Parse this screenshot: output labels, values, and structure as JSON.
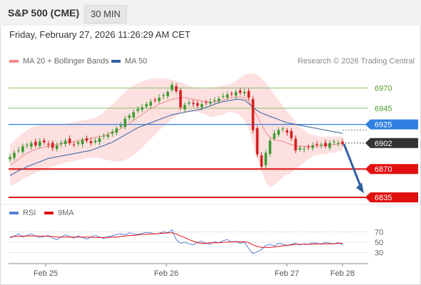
{
  "header": {
    "title": "S&P 500 (CME)",
    "interval": "30 MIN"
  },
  "datetime": "Friday, February 27, 2026 11:26:29 AM CET",
  "legend": {
    "items": [
      {
        "label": "MA 20 + Bollinger Bands",
        "color": "#f08a8a"
      },
      {
        "label": "MA 50",
        "color": "#2f5f9e"
      }
    ],
    "credit": "Research © 2026 Trading Central"
  },
  "rsi_legend": {
    "items": [
      {
        "label": "RSI",
        "color": "#5b7fd6"
      },
      {
        "label": "9MA",
        "color": "#e01010"
      }
    ]
  },
  "chart_data": [
    {
      "type": "candlestick",
      "ylim": [
        6828,
        6995
      ],
      "x_ticks": [
        "Feb 25",
        "Feb 26",
        "Feb 27",
        "Feb 28"
      ],
      "levels": [
        {
          "label": "6970",
          "value": 6970,
          "kind": "resistance",
          "color": "#8cc070"
        },
        {
          "label": "6945",
          "value": 6945,
          "kind": "resistance",
          "color": "#8cc070"
        },
        {
          "label": "6925",
          "value": 6925,
          "kind": "pivot",
          "color": "#2f7fe0"
        },
        {
          "label": "6902",
          "value": 6902,
          "kind": "last",
          "color": "#333333"
        },
        {
          "label": "6870",
          "value": 6870,
          "kind": "support",
          "color": "#e01010"
        },
        {
          "label": "6835",
          "value": 6835,
          "kind": "support",
          "color": "#e01010"
        }
      ],
      "forecast": {
        "from": 6901,
        "to": 6840,
        "color": "#2f5fa0"
      },
      "close_series": [
        6885,
        6890,
        6893,
        6898,
        6900,
        6902,
        6899,
        6904,
        6903,
        6900,
        6896,
        6899,
        6902,
        6905,
        6902,
        6900,
        6903,
        6906,
        6905,
        6902,
        6905,
        6908,
        6911,
        6912,
        6916,
        6920,
        6924,
        6932,
        6936,
        6940,
        6944,
        6946,
        6950,
        6953,
        6955,
        6958,
        6961,
        6965,
        6974,
        6966,
        6946,
        6949,
        6952,
        6950,
        6948,
        6950,
        6952,
        6953,
        6955,
        6957,
        6960,
        6962,
        6963,
        6965,
        6964,
        6965,
        6958,
        6918,
        6888,
        6873,
        6890,
        6905,
        6914,
        6918,
        6920,
        6915,
        6908,
        6893,
        6896,
        6895,
        6897,
        6899,
        6900,
        6900,
        6898,
        6902,
        6904,
        6902,
        6901
      ],
      "ma20": [
        6875,
        6878,
        6882,
        6886,
        6889,
        6892,
        6894,
        6896,
        6897,
        6898,
        6899,
        6900,
        6901,
        6902,
        6903,
        6904,
        6905,
        6906,
        6907,
        6908,
        6909,
        6910,
        6911,
        6913,
        6915,
        6917,
        6920,
        6923,
        6927,
        6930,
        6934,
        6937,
        6941,
        6944,
        6947,
        6950,
        6952,
        6954,
        6956,
        6957,
        6958,
        6958,
        6957,
        6956,
        6955,
        6954,
        6953,
        6952,
        6953,
        6954,
        6955,
        6957,
        6958,
        6959,
        6959,
        6958,
        6954,
        6945,
        6935,
        6925,
        6915,
        6909,
        6906,
        6905,
        6904,
        6902,
        6900,
        6899,
        6898,
        6898,
        6898,
        6899,
        6899,
        6899,
        6899,
        6900,
        6900,
        6901,
        6901
      ],
      "bb_upper": [
        6900,
        6905,
        6910,
        6914,
        6918,
        6921,
        6923,
        6924,
        6925,
        6925,
        6925,
        6925,
        6926,
        6926,
        6927,
        6928,
        6929,
        6930,
        6931,
        6932,
        6934,
        6936,
        6940,
        6945,
        6950,
        6955,
        6960,
        6965,
        6970,
        6973,
        6976,
        6978,
        6980,
        6981,
        6982,
        6982,
        6982,
        6981,
        6980,
        6979,
        6977,
        6975,
        6973,
        6971,
        6970,
        6969,
        6969,
        6970,
        6971,
        6972,
        6973,
        6974,
        6976,
        6979,
        6982,
        6986,
        6988,
        6988,
        6986,
        6982,
        6976,
        6970,
        6962,
        6955,
        6948,
        6941,
        6935,
        6928,
        6922,
        6918,
        6914,
        6912,
        6911,
        6910,
        6910,
        6910,
        6910,
        6910,
        6910
      ],
      "bb_lower": [
        6850,
        6851,
        6854,
        6858,
        6860,
        6863,
        6865,
        6868,
        6869,
        6871,
        6873,
        6875,
        6876,
        6878,
        6879,
        6880,
        6881,
        6882,
        6883,
        6884,
        6884,
        6884,
        6882,
        6881,
        6880,
        6879,
        6880,
        6881,
        6884,
        6887,
        6892,
        6896,
        6902,
        6907,
        6912,
        6918,
        6922,
        6927,
        6932,
        6935,
        6939,
        6941,
        6941,
        6941,
        6940,
        6939,
        6937,
        6934,
        6935,
        6936,
        6937,
        6940,
        6940,
        6939,
        6936,
        6930,
        6920,
        6902,
        6884,
        6868,
        6854,
        6848,
        6850,
        6855,
        6860,
        6863,
        6865,
        6870,
        6874,
        6878,
        6882,
        6886,
        6887,
        6888,
        6888,
        6890,
        6890,
        6892,
        6892
      ],
      "ma50": [
        6862,
        6865,
        6868,
        6870,
        6873,
        6875,
        6877,
        6879,
        6881,
        6883,
        6884,
        6885,
        6886,
        6887,
        6888,
        6889,
        6890,
        6891,
        6892,
        6893,
        6895,
        6897,
        6899,
        6901,
        6903,
        6906,
        6909,
        6912,
        6915,
        6918,
        6921,
        6923,
        6925,
        6927,
        6929,
        6931,
        6933,
        6935,
        6937,
        6938,
        6939,
        6940,
        6941,
        6942,
        6943,
        6944,
        6946,
        6948,
        6950,
        6952,
        6953,
        6954,
        6955,
        6956,
        6956,
        6955,
        6951,
        6946,
        6942,
        6939,
        6937,
        6935,
        6933,
        6931,
        6929,
        6927,
        6926,
        6925,
        6924,
        6923,
        6922,
        6921,
        6920,
        6919,
        6918,
        6917,
        6916,
        6915,
        6914
      ]
    },
    {
      "type": "line",
      "title": "RSI",
      "ylim": [
        20,
        80
      ],
      "y_ticks": [
        "70",
        "50",
        "30"
      ],
      "series": [
        {
          "name": "RSI",
          "color": "#5b7fd6",
          "values": [
            58,
            62,
            66,
            60,
            63,
            66,
            62,
            59,
            61,
            63,
            58,
            55,
            60,
            64,
            61,
            58,
            62,
            59,
            56,
            60,
            63,
            60,
            57,
            61,
            62,
            65,
            66,
            64,
            68,
            66,
            65,
            67,
            69,
            68,
            66,
            67,
            70,
            68,
            74,
            55,
            48,
            50,
            47,
            45,
            50,
            52,
            48,
            46,
            51,
            49,
            53,
            55,
            50,
            52,
            48,
            50,
            38,
            28,
            32,
            36,
            44,
            46,
            43,
            48,
            46,
            44,
            46,
            48,
            45,
            47,
            46,
            49,
            48,
            46,
            50,
            48,
            47,
            49,
            46
          ]
        },
        {
          "name": "9MA",
          "color": "#e01010",
          "values": [
            60,
            61,
            61,
            62,
            62,
            62,
            62,
            62,
            62,
            61,
            61,
            60,
            60,
            60,
            60,
            60,
            60,
            60,
            60,
            60,
            59,
            59,
            59,
            59,
            60,
            60,
            61,
            62,
            63,
            63,
            64,
            65,
            65,
            66,
            66,
            67,
            67,
            68,
            68,
            66,
            62,
            59,
            55,
            52,
            49,
            48,
            48,
            49,
            49,
            49,
            50,
            50,
            51,
            51,
            51,
            51,
            49,
            45,
            42,
            40,
            40,
            40,
            41,
            42,
            43,
            44,
            45,
            46,
            46,
            46,
            46,
            46,
            47,
            47,
            47,
            47,
            47,
            48,
            48
          ]
        }
      ]
    }
  ]
}
